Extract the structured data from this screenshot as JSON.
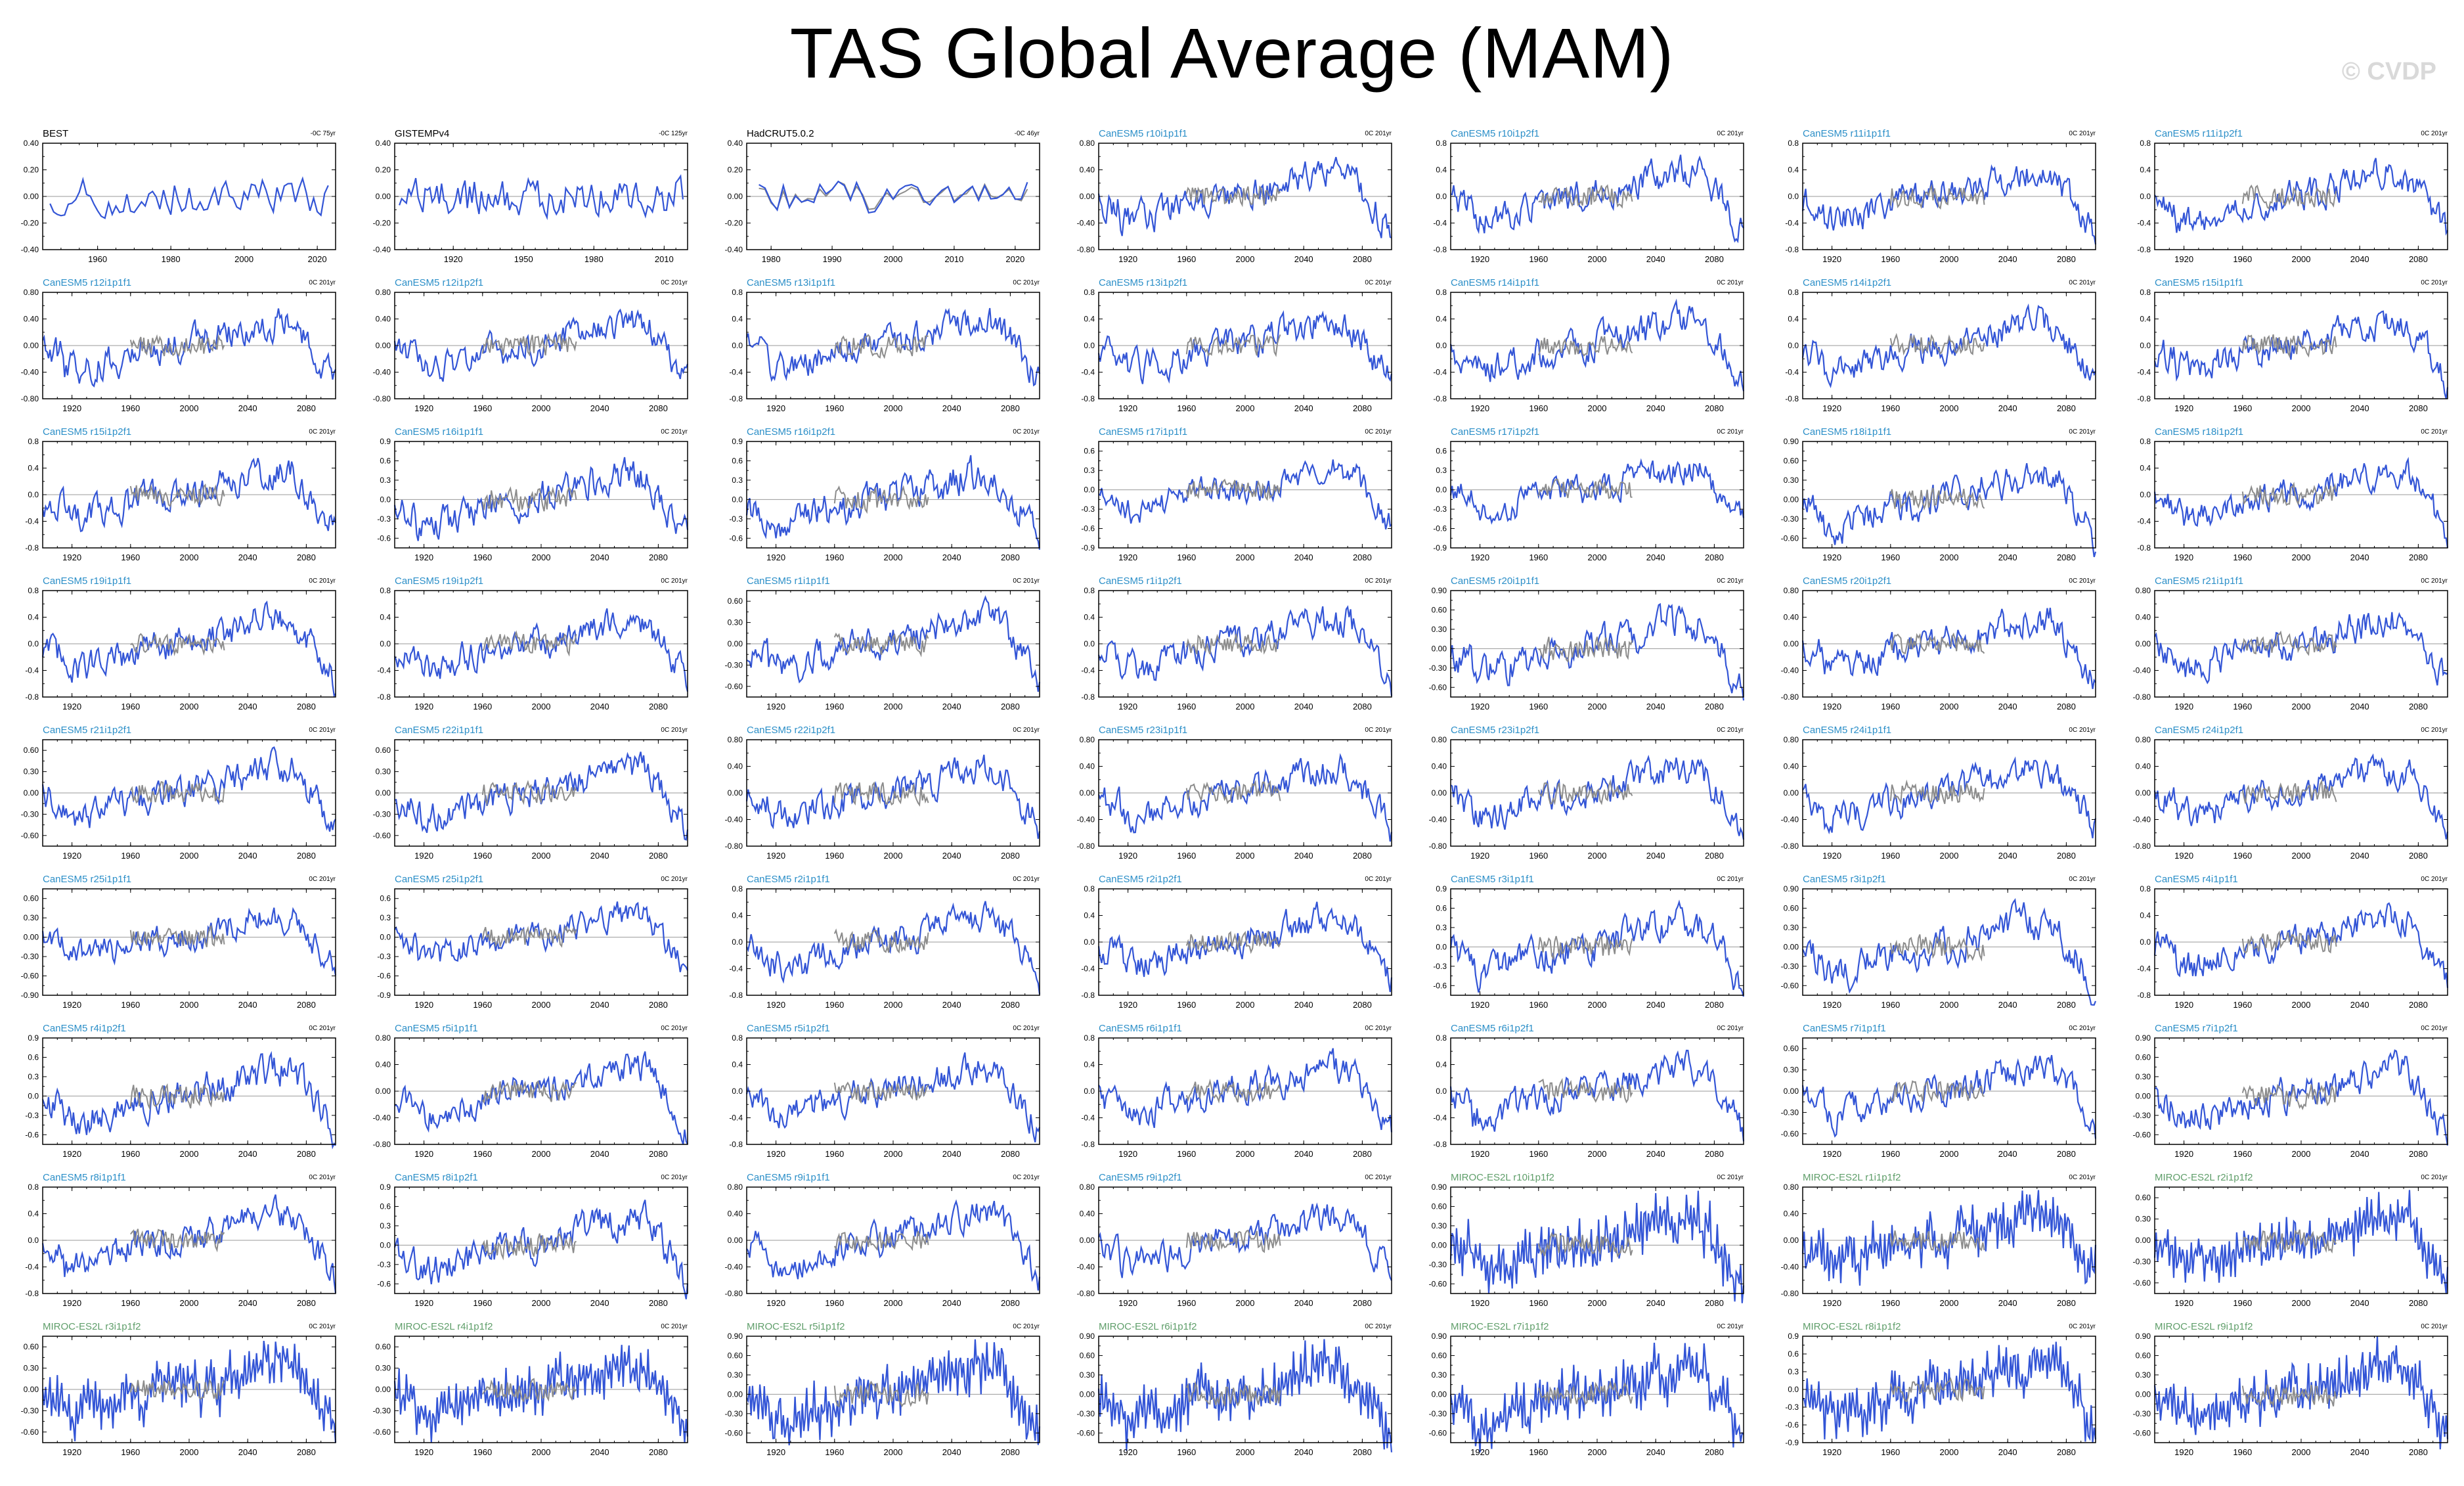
{
  "title": "TAS Global Average (MAM)",
  "watermark": "© CVDP",
  "colors": {
    "model_line": "#3355d6",
    "obs_line": "#8c8c8c",
    "frame": "#000000",
    "zero_line": "#9a9a9a",
    "canesm_label": "#2c8fc8",
    "miroc_label": "#5f9e6a",
    "obs_label": "#000000"
  },
  "chart_data": [
    {
      "type": "line",
      "label": "BEST",
      "trend": "-0C 75yr",
      "kind": "obs",
      "x_range": [
        1945,
        2025
      ],
      "xticks": [
        1960,
        1980,
        2000,
        2020
      ],
      "yticks": [
        "0.40",
        "0.20",
        "0.00",
        "-0.20",
        "-0.40"
      ],
      "ylim": [
        -0.4,
        0.4
      ]
    },
    {
      "type": "line",
      "label": "GISTEMPv4",
      "trend": "-0C 125yr",
      "kind": "obs",
      "x_range": [
        1895,
        2020
      ],
      "xticks": [
        1920,
        1950,
        1980,
        2010
      ],
      "yticks": [
        "0.40",
        "0.20",
        "0.00",
        "-0.20",
        "-0.40"
      ],
      "ylim": [
        -0.4,
        0.4
      ]
    },
    {
      "type": "line",
      "label": "HadCRUT5.0.2",
      "trend": "-0C 46yr",
      "kind": "obs",
      "x_range": [
        1976,
        2024
      ],
      "xticks": [
        1980,
        1990,
        2000,
        2010,
        2020
      ],
      "yticks": [
        "0.40",
        "0.20",
        "0.00",
        "-0.20",
        "-0.40"
      ],
      "ylim": [
        -0.4,
        0.4
      ]
    },
    {
      "type": "line",
      "label": "CanESM5 r10i1p1f1",
      "trend": "0C 201yr",
      "kind": "model",
      "yticks": [
        "0.80",
        "0.40",
        "0.00",
        "-0.40",
        "-0.80"
      ],
      "ylim": [
        -0.8,
        0.8
      ]
    },
    {
      "type": "line",
      "label": "CanESM5 r10i1p2f1",
      "trend": "0C 201yr",
      "kind": "model",
      "yticks": [
        "0.8",
        "0.4",
        "0.0",
        "-0.4",
        "-0.8"
      ],
      "ylim": [
        -0.8,
        0.8
      ]
    },
    {
      "type": "line",
      "label": "CanESM5 r11i1p1f1",
      "trend": "0C 201yr",
      "kind": "model",
      "yticks": [
        "0.8",
        "0.4",
        "0.0",
        "-0.4",
        "-0.8"
      ],
      "ylim": [
        -0.8,
        0.8
      ]
    },
    {
      "type": "line",
      "label": "CanESM5 r11i1p2f1",
      "trend": "0C 201yr",
      "kind": "model",
      "yticks": [
        "0.8",
        "0.4",
        "0.0",
        "-0.4",
        "-0.8"
      ],
      "ylim": [
        -0.8,
        0.8
      ]
    },
    {
      "type": "line",
      "label": "CanESM5 r12i1p1f1",
      "trend": "0C 201yr",
      "kind": "model",
      "yticks": [
        "0.80",
        "0.40",
        "0.00",
        "-0.40",
        "-0.80"
      ],
      "ylim": [
        -0.8,
        0.8
      ]
    },
    {
      "type": "line",
      "label": "CanESM5 r12i1p2f1",
      "trend": "0C 201yr",
      "kind": "model",
      "yticks": [
        "0.80",
        "0.40",
        "0.00",
        "-0.40",
        "-0.80"
      ],
      "ylim": [
        -0.8,
        0.8
      ]
    },
    {
      "type": "line",
      "label": "CanESM5 r13i1p1f1",
      "trend": "0C 201yr",
      "kind": "model",
      "yticks": [
        "0.8",
        "0.4",
        "0.0",
        "-0.4",
        "-0.8"
      ],
      "ylim": [
        -0.8,
        0.8
      ]
    },
    {
      "type": "line",
      "label": "CanESM5 r13i1p2f1",
      "trend": "0C 201yr",
      "kind": "model",
      "yticks": [
        "0.8",
        "0.4",
        "0.0",
        "-0.4",
        "-0.8"
      ],
      "ylim": [
        -0.8,
        0.8
      ]
    },
    {
      "type": "line",
      "label": "CanESM5 r14i1p1f1",
      "trend": "0C 201yr",
      "kind": "model",
      "yticks": [
        "0.8",
        "0.4",
        "0.0",
        "-0.4",
        "-0.8"
      ],
      "ylim": [
        -0.8,
        0.8
      ]
    },
    {
      "type": "line",
      "label": "CanESM5 r14i1p2f1",
      "trend": "0C 201yr",
      "kind": "model",
      "yticks": [
        "0.8",
        "0.4",
        "0.0",
        "-0.4",
        "-0.8"
      ],
      "ylim": [
        -0.8,
        0.8
      ]
    },
    {
      "type": "line",
      "label": "CanESM5 r15i1p1f1",
      "trend": "0C 201yr",
      "kind": "model",
      "yticks": [
        "0.8",
        "0.4",
        "0.0",
        "-0.4",
        "-0.8"
      ],
      "ylim": [
        -0.8,
        0.8
      ]
    },
    {
      "type": "line",
      "label": "CanESM5 r15i1p2f1",
      "trend": "0C 201yr",
      "kind": "model",
      "yticks": [
        "0.8",
        "0.4",
        "0.0",
        "-0.4",
        "-0.8"
      ],
      "ylim": [
        -0.8,
        0.8
      ]
    },
    {
      "type": "line",
      "label": "CanESM5 r16i1p1f1",
      "trend": "0C 201yr",
      "kind": "model",
      "yticks": [
        "0.9",
        "0.6",
        "0.3",
        "0.0",
        "-0.3",
        "-0.6"
      ],
      "ylim": [
        -0.75,
        0.9
      ]
    },
    {
      "type": "line",
      "label": "CanESM5 r16i1p2f1",
      "trend": "0C 201yr",
      "kind": "model",
      "yticks": [
        "0.9",
        "0.6",
        "0.3",
        "0.0",
        "-0.3",
        "-0.6"
      ],
      "ylim": [
        -0.75,
        0.9
      ]
    },
    {
      "type": "line",
      "label": "CanESM5 r17i1p1f1",
      "trend": "0C 201yr",
      "kind": "model",
      "yticks": [
        "0.6",
        "0.3",
        "0.0",
        "-0.3",
        "-0.6",
        "-0.9"
      ],
      "ylim": [
        -0.9,
        0.75
      ]
    },
    {
      "type": "line",
      "label": "CanESM5 r17i1p2f1",
      "trend": "0C 201yr",
      "kind": "model",
      "yticks": [
        "0.6",
        "0.3",
        "0.0",
        "-0.3",
        "-0.6",
        "-0.9"
      ],
      "ylim": [
        -0.9,
        0.75
      ]
    },
    {
      "type": "line",
      "label": "CanESM5 r18i1p1f1",
      "trend": "0C 201yr",
      "kind": "model",
      "yticks": [
        "0.90",
        "0.60",
        "0.30",
        "0.00",
        "-0.30",
        "-0.60"
      ],
      "ylim": [
        -0.75,
        0.9
      ]
    },
    {
      "type": "line",
      "label": "CanESM5 r18i1p2f1",
      "trend": "0C 201yr",
      "kind": "model",
      "yticks": [
        "0.8",
        "0.4",
        "0.0",
        "-0.4",
        "-0.8"
      ],
      "ylim": [
        -0.8,
        0.8
      ]
    },
    {
      "type": "line",
      "label": "CanESM5 r19i1p1f1",
      "trend": "0C 201yr",
      "kind": "model",
      "yticks": [
        "0.8",
        "0.4",
        "0.0",
        "-0.4",
        "-0.8"
      ],
      "ylim": [
        -0.8,
        0.8
      ]
    },
    {
      "type": "line",
      "label": "CanESM5 r19i1p2f1",
      "trend": "0C 201yr",
      "kind": "model",
      "yticks": [
        "0.8",
        "0.4",
        "0.0",
        "-0.4",
        "-0.8"
      ],
      "ylim": [
        -0.8,
        0.8
      ]
    },
    {
      "type": "line",
      "label": "CanESM5 r1i1p1f1",
      "trend": "0C 201yr",
      "kind": "model",
      "yticks": [
        "0.60",
        "0.30",
        "0.00",
        "-0.30",
        "-0.60"
      ],
      "ylim": [
        -0.75,
        0.75
      ]
    },
    {
      "type": "line",
      "label": "CanESM5 r1i1p2f1",
      "trend": "0C 201yr",
      "kind": "model",
      "yticks": [
        "0.8",
        "0.4",
        "0.0",
        "-0.4",
        "-0.8"
      ],
      "ylim": [
        -0.8,
        0.8
      ]
    },
    {
      "type": "line",
      "label": "CanESM5 r20i1p1f1",
      "trend": "0C 201yr",
      "kind": "model",
      "yticks": [
        "0.90",
        "0.60",
        "0.30",
        "0.00",
        "-0.30",
        "-0.60"
      ],
      "ylim": [
        -0.75,
        0.9
      ]
    },
    {
      "type": "line",
      "label": "CanESM5 r20i1p2f1",
      "trend": "0C 201yr",
      "kind": "model",
      "yticks": [
        "0.80",
        "0.40",
        "0.00",
        "-0.40",
        "-0.80"
      ],
      "ylim": [
        -0.8,
        0.8
      ]
    },
    {
      "type": "line",
      "label": "CanESM5 r21i1p1f1",
      "trend": "0C 201yr",
      "kind": "model",
      "yticks": [
        "0.80",
        "0.40",
        "0.00",
        "-0.40",
        "-0.80"
      ],
      "ylim": [
        -0.8,
        0.8
      ]
    },
    {
      "type": "line",
      "label": "CanESM5 r21i1p2f1",
      "trend": "0C 201yr",
      "kind": "model",
      "yticks": [
        "0.60",
        "0.30",
        "0.00",
        "-0.30",
        "-0.60"
      ],
      "ylim": [
        -0.75,
        0.75
      ]
    },
    {
      "type": "line",
      "label": "CanESM5 r22i1p1f1",
      "trend": "0C 201yr",
      "kind": "model",
      "yticks": [
        "0.60",
        "0.30",
        "0.00",
        "-0.30",
        "-0.60"
      ],
      "ylim": [
        -0.75,
        0.75
      ]
    },
    {
      "type": "line",
      "label": "CanESM5 r22i1p2f1",
      "trend": "0C 201yr",
      "kind": "model",
      "yticks": [
        "0.80",
        "0.40",
        "0.00",
        "-0.40",
        "-0.80"
      ],
      "ylim": [
        -0.8,
        0.8
      ]
    },
    {
      "type": "line",
      "label": "CanESM5 r23i1p1f1",
      "trend": "0C 201yr",
      "kind": "model",
      "yticks": [
        "0.80",
        "0.40",
        "0.00",
        "-0.40",
        "-0.80"
      ],
      "ylim": [
        -0.8,
        0.8
      ]
    },
    {
      "type": "line",
      "label": "CanESM5 r23i1p2f1",
      "trend": "0C 201yr",
      "kind": "model",
      "yticks": [
        "0.80",
        "0.40",
        "0.00",
        "-0.40",
        "-0.80"
      ],
      "ylim": [
        -0.8,
        0.8
      ]
    },
    {
      "type": "line",
      "label": "CanESM5 r24i1p1f1",
      "trend": "0C 201yr",
      "kind": "model",
      "yticks": [
        "0.80",
        "0.40",
        "0.00",
        "-0.40",
        "-0.80"
      ],
      "ylim": [
        -0.8,
        0.8
      ]
    },
    {
      "type": "line",
      "label": "CanESM5 r24i1p2f1",
      "trend": "0C 201yr",
      "kind": "model",
      "yticks": [
        "0.80",
        "0.40",
        "0.00",
        "-0.40",
        "-0.80"
      ],
      "ylim": [
        -0.8,
        0.8
      ]
    },
    {
      "type": "line",
      "label": "CanESM5 r25i1p1f1",
      "trend": "0C 201yr",
      "kind": "model",
      "yticks": [
        "0.60",
        "0.30",
        "0.00",
        "-0.30",
        "-0.60",
        "-0.90"
      ],
      "ylim": [
        -0.9,
        0.75
      ]
    },
    {
      "type": "line",
      "label": "CanESM5 r25i1p2f1",
      "trend": "0C 201yr",
      "kind": "model",
      "yticks": [
        "0.6",
        "0.3",
        "0.0",
        "-0.3",
        "-0.6",
        "-0.9"
      ],
      "ylim": [
        -0.9,
        0.75
      ]
    },
    {
      "type": "line",
      "label": "CanESM5 r2i1p1f1",
      "trend": "0C 201yr",
      "kind": "model",
      "yticks": [
        "0.8",
        "0.4",
        "0.0",
        "-0.4",
        "-0.8"
      ],
      "ylim": [
        -0.8,
        0.8
      ]
    },
    {
      "type": "line",
      "label": "CanESM5 r2i1p2f1",
      "trend": "0C 201yr",
      "kind": "model",
      "yticks": [
        "0.8",
        "0.4",
        "0.0",
        "-0.4",
        "-0.8"
      ],
      "ylim": [
        -0.8,
        0.8
      ]
    },
    {
      "type": "line",
      "label": "CanESM5 r3i1p1f1",
      "trend": "0C 201yr",
      "kind": "model",
      "yticks": [
        "0.9",
        "0.6",
        "0.3",
        "0.0",
        "-0.3",
        "-0.6"
      ],
      "ylim": [
        -0.75,
        0.9
      ]
    },
    {
      "type": "line",
      "label": "CanESM5 r3i1p2f1",
      "trend": "0C 201yr",
      "kind": "model",
      "yticks": [
        "0.90",
        "0.60",
        "0.30",
        "0.00",
        "-0.30",
        "-0.60"
      ],
      "ylim": [
        -0.75,
        0.9
      ]
    },
    {
      "type": "line",
      "label": "CanESM5 r4i1p1f1",
      "trend": "0C 201yr",
      "kind": "model",
      "yticks": [
        "0.8",
        "0.4",
        "0.0",
        "-0.4",
        "-0.8"
      ],
      "ylim": [
        -0.8,
        0.8
      ]
    },
    {
      "type": "line",
      "label": "CanESM5 r4i1p2f1",
      "trend": "0C 201yr",
      "kind": "model",
      "yticks": [
        "0.9",
        "0.6",
        "0.3",
        "0.0",
        "-0.3",
        "-0.6"
      ],
      "ylim": [
        -0.75,
        0.9
      ]
    },
    {
      "type": "line",
      "label": "CanESM5 r5i1p1f1",
      "trend": "0C 201yr",
      "kind": "model",
      "yticks": [
        "0.80",
        "0.40",
        "0.00",
        "-0.40",
        "-0.80"
      ],
      "ylim": [
        -0.8,
        0.8
      ]
    },
    {
      "type": "line",
      "label": "CanESM5 r5i1p2f1",
      "trend": "0C 201yr",
      "kind": "model",
      "yticks": [
        "0.8",
        "0.4",
        "0.0",
        "-0.4",
        "-0.8"
      ],
      "ylim": [
        -0.8,
        0.8
      ]
    },
    {
      "type": "line",
      "label": "CanESM5 r6i1p1f1",
      "trend": "0C 201yr",
      "kind": "model",
      "yticks": [
        "0.8",
        "0.4",
        "0.0",
        "-0.4",
        "-0.8"
      ],
      "ylim": [
        -0.8,
        0.8
      ]
    },
    {
      "type": "line",
      "label": "CanESM5 r6i1p2f1",
      "trend": "0C 201yr",
      "kind": "model",
      "yticks": [
        "0.8",
        "0.4",
        "0.0",
        "-0.4",
        "-0.8"
      ],
      "ylim": [
        -0.8,
        0.8
      ]
    },
    {
      "type": "line",
      "label": "CanESM5 r7i1p1f1",
      "trend": "0C 201yr",
      "kind": "model",
      "yticks": [
        "0.60",
        "0.30",
        "0.00",
        "-0.30",
        "-0.60"
      ],
      "ylim": [
        -0.75,
        0.75
      ]
    },
    {
      "type": "line",
      "label": "CanESM5 r7i1p2f1",
      "trend": "0C 201yr",
      "kind": "model",
      "yticks": [
        "0.90",
        "0.60",
        "0.30",
        "0.00",
        "-0.30",
        "-0.60"
      ],
      "ylim": [
        -0.75,
        0.9
      ]
    },
    {
      "type": "line",
      "label": "CanESM5 r8i1p1f1",
      "trend": "0C 201yr",
      "kind": "model",
      "yticks": [
        "0.8",
        "0.4",
        "0.0",
        "-0.4",
        "-0.8"
      ],
      "ylim": [
        -0.8,
        0.8
      ]
    },
    {
      "type": "line",
      "label": "CanESM5 r8i1p2f1",
      "trend": "0C 201yr",
      "kind": "model",
      "yticks": [
        "0.9",
        "0.6",
        "0.3",
        "0.0",
        "-0.3",
        "-0.6"
      ],
      "ylim": [
        -0.75,
        0.9
      ]
    },
    {
      "type": "line",
      "label": "CanESM5 r9i1p1f1",
      "trend": "0C 201yr",
      "kind": "model",
      "yticks": [
        "0.80",
        "0.40",
        "0.00",
        "-0.40",
        "-0.80"
      ],
      "ylim": [
        -0.8,
        0.8
      ]
    },
    {
      "type": "line",
      "label": "CanESM5 r9i1p2f1",
      "trend": "0C 201yr",
      "kind": "model",
      "yticks": [
        "0.80",
        "0.40",
        "0.00",
        "-0.40",
        "-0.80"
      ],
      "ylim": [
        -0.8,
        0.8
      ]
    },
    {
      "type": "line",
      "label": "MIROC-ES2L r10i1p1f2",
      "trend": "0C 201yr",
      "kind": "model",
      "yticks": [
        "0.90",
        "0.60",
        "0.30",
        "0.00",
        "-0.30",
        "-0.60"
      ],
      "ylim": [
        -0.75,
        0.9
      ]
    },
    {
      "type": "line",
      "label": "MIROC-ES2L r1i1p1f2",
      "trend": "0C 201yr",
      "kind": "model",
      "yticks": [
        "0.80",
        "0.40",
        "0.00",
        "-0.40",
        "-0.80"
      ],
      "ylim": [
        -0.8,
        0.8
      ]
    },
    {
      "type": "line",
      "label": "MIROC-ES2L r2i1p1f2",
      "trend": "0C 201yr",
      "kind": "model",
      "yticks": [
        "0.60",
        "0.30",
        "0.00",
        "-0.30",
        "-0.60"
      ],
      "ylim": [
        -0.75,
        0.75
      ]
    },
    {
      "type": "line",
      "label": "MIROC-ES2L r3i1p1f2",
      "trend": "0C 201yr",
      "kind": "model",
      "yticks": [
        "0.60",
        "0.30",
        "0.00",
        "-0.30",
        "-0.60"
      ],
      "ylim": [
        -0.75,
        0.75
      ]
    },
    {
      "type": "line",
      "label": "MIROC-ES2L r4i1p1f2",
      "trend": "0C 201yr",
      "kind": "model",
      "yticks": [
        "0.60",
        "0.30",
        "0.00",
        "-0.30",
        "-0.60"
      ],
      "ylim": [
        -0.75,
        0.75
      ]
    },
    {
      "type": "line",
      "label": "MIROC-ES2L r5i1p1f2",
      "trend": "0C 201yr",
      "kind": "model",
      "yticks": [
        "0.90",
        "0.60",
        "0.30",
        "0.00",
        "-0.30",
        "-0.60"
      ],
      "ylim": [
        -0.75,
        0.9
      ]
    },
    {
      "type": "line",
      "label": "MIROC-ES2L r6i1p1f2",
      "trend": "0C 201yr",
      "kind": "model",
      "yticks": [
        "0.90",
        "0.60",
        "0.30",
        "0.00",
        "-0.30",
        "-0.60"
      ],
      "ylim": [
        -0.75,
        0.9
      ]
    },
    {
      "type": "line",
      "label": "MIROC-ES2L r7i1p1f2",
      "trend": "0C 201yr",
      "kind": "model",
      "yticks": [
        "0.90",
        "0.60",
        "0.30",
        "0.00",
        "-0.30",
        "-0.60"
      ],
      "ylim": [
        -0.75,
        0.9
      ]
    },
    {
      "type": "line",
      "label": "MIROC-ES2L r8i1p1f2",
      "trend": "0C 201yr",
      "kind": "model",
      "yticks": [
        "0.9",
        "0.6",
        "0.3",
        "0.0",
        "-0.3",
        "-0.6",
        "-0.9"
      ],
      "ylim": [
        -0.9,
        0.9
      ]
    },
    {
      "type": "line",
      "label": "MIROC-ES2L r9i1p1f2",
      "trend": "0C 201yr",
      "kind": "model",
      "yticks": [
        "0.90",
        "0.60",
        "0.30",
        "0.00",
        "-0.30",
        "-0.60"
      ],
      "ylim": [
        -0.75,
        0.9
      ]
    }
  ],
  "model_axis": {
    "x_range": [
      1900,
      2100
    ],
    "xticks": [
      1920,
      1960,
      2000,
      2040,
      2080
    ]
  }
}
